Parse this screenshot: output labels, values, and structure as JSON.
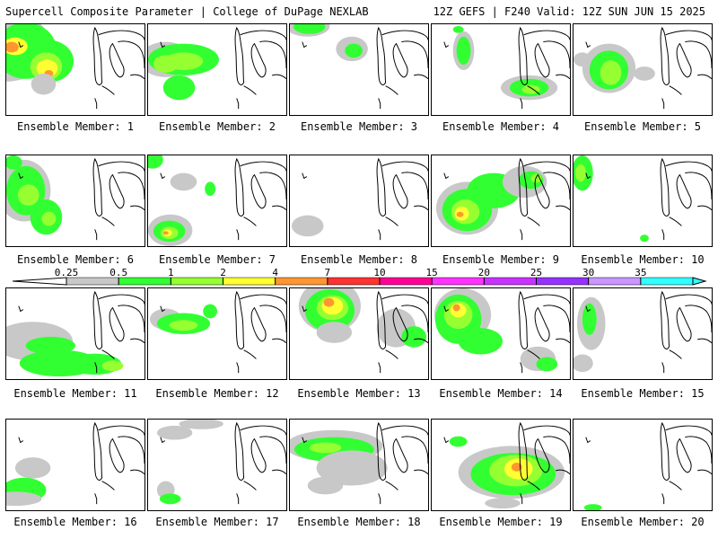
{
  "header": {
    "left_title": "Supercell Composite Parameter | College of DuPage NEXLAB",
    "right_title": "12Z GEFS | F240 Valid: 12Z SUN JUN 15 2025"
  },
  "legend": {
    "ticks": [
      "0.25",
      "0.5",
      "1",
      "2",
      "4",
      "7",
      "10",
      "15",
      "20",
      "25",
      "30",
      "35"
    ],
    "colors": [
      "#c8c8c8",
      "#32ff32",
      "#96ff32",
      "#ffff32",
      "#ff9632",
      "#ff3232",
      "#ff0096",
      "#ff32ff",
      "#c832ff",
      "#9632ff",
      "#c896ff",
      "#32ffff"
    ]
  },
  "members": [
    {
      "label": "Ensemble Member: 1"
    },
    {
      "label": "Ensemble Member: 2"
    },
    {
      "label": "Ensemble Member: 3"
    },
    {
      "label": "Ensemble Member: 4"
    },
    {
      "label": "Ensemble Member: 5"
    },
    {
      "label": "Ensemble Member: 6"
    },
    {
      "label": "Ensemble Member: 7"
    },
    {
      "label": "Ensemble Member: 8"
    },
    {
      "label": "Ensemble Member: 9"
    },
    {
      "label": "Ensemble Member: 10"
    },
    {
      "label": "Ensemble Member: 11"
    },
    {
      "label": "Ensemble Member: 12"
    },
    {
      "label": "Ensemble Member: 13"
    },
    {
      "label": "Ensemble Member: 14"
    },
    {
      "label": "Ensemble Member: 15"
    },
    {
      "label": "Ensemble Member: 16"
    },
    {
      "label": "Ensemble Member: 17"
    },
    {
      "label": "Ensemble Member: 18"
    },
    {
      "label": "Ensemble Member: 19"
    },
    {
      "label": "Ensemble Member: 20"
    }
  ]
}
